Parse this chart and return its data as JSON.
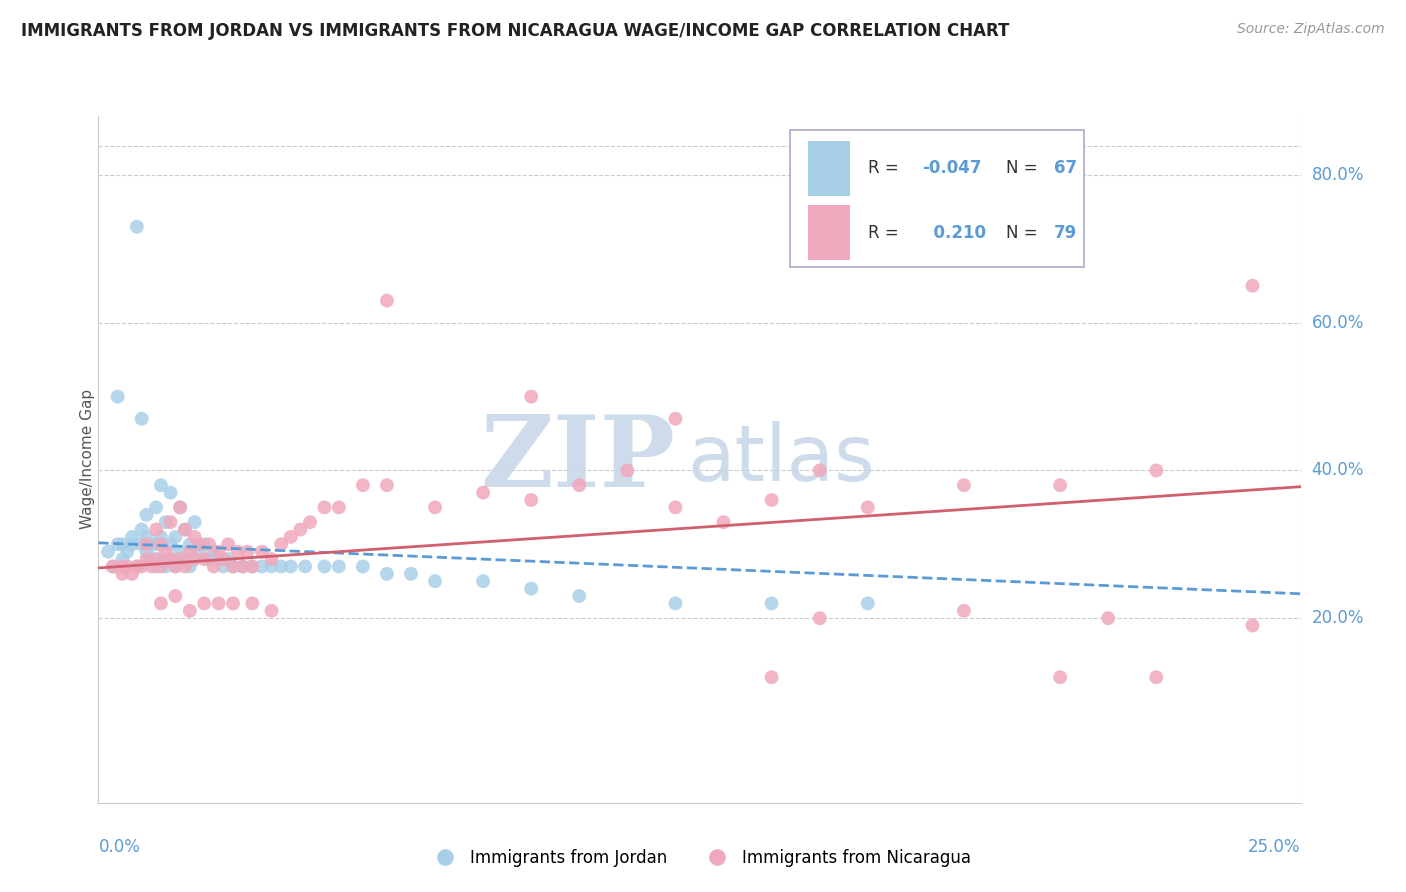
{
  "title": "IMMIGRANTS FROM JORDAN VS IMMIGRANTS FROM NICARAGUA WAGE/INCOME GAP CORRELATION CHART",
  "source": "Source: ZipAtlas.com",
  "ylabel": "Wage/Income Gap",
  "xlim": [
    0.0,
    0.25
  ],
  "ylim": [
    -0.05,
    0.88
  ],
  "right_yticks": [
    0.2,
    0.4,
    0.6,
    0.8
  ],
  "right_yticklabels": [
    "20.0%",
    "40.0%",
    "60.0%",
    "80.0%"
  ],
  "jordan_color": "#a8cfe8",
  "nicaragua_color": "#f0a8bc",
  "jordan_trend_color": "#5b9bd5",
  "nicaragua_trend_color": "#d06070",
  "watermark_zip_color": "#c8d8e8",
  "watermark_atlas_color": "#c8d8e8",
  "jordan_r": "-0.047",
  "jordan_n": "67",
  "nicaragua_r": "0.210",
  "nicaragua_n": "79",
  "legend_text_color": "#5b9bd5",
  "legend_label_color": "#333333",
  "jordan_scatter_x": [
    0.002,
    0.003,
    0.004,
    0.005,
    0.005,
    0.006,
    0.007,
    0.007,
    0.008,
    0.008,
    0.009,
    0.009,
    0.01,
    0.01,
    0.01,
    0.011,
    0.011,
    0.012,
    0.012,
    0.012,
    0.013,
    0.013,
    0.013,
    0.014,
    0.014,
    0.015,
    0.015,
    0.015,
    0.016,
    0.016,
    0.017,
    0.017,
    0.018,
    0.018,
    0.019,
    0.019,
    0.02,
    0.02,
    0.021,
    0.022,
    0.023,
    0.024,
    0.025,
    0.026,
    0.027,
    0.028,
    0.03,
    0.032,
    0.034,
    0.036,
    0.038,
    0.04,
    0.043,
    0.047,
    0.05,
    0.055,
    0.06,
    0.065,
    0.07,
    0.08,
    0.09,
    0.1,
    0.12,
    0.14,
    0.16,
    0.004,
    0.009
  ],
  "jordan_scatter_y": [
    0.29,
    0.27,
    0.3,
    0.28,
    0.3,
    0.29,
    0.3,
    0.31,
    0.73,
    0.27,
    0.3,
    0.32,
    0.29,
    0.31,
    0.34,
    0.28,
    0.3,
    0.27,
    0.3,
    0.35,
    0.28,
    0.31,
    0.38,
    0.27,
    0.33,
    0.28,
    0.3,
    0.37,
    0.27,
    0.31,
    0.29,
    0.35,
    0.28,
    0.32,
    0.27,
    0.3,
    0.28,
    0.33,
    0.29,
    0.3,
    0.28,
    0.29,
    0.28,
    0.27,
    0.28,
    0.27,
    0.27,
    0.27,
    0.27,
    0.27,
    0.27,
    0.27,
    0.27,
    0.27,
    0.27,
    0.27,
    0.26,
    0.26,
    0.25,
    0.25,
    0.24,
    0.23,
    0.22,
    0.22,
    0.22,
    0.5,
    0.47
  ],
  "nicaragua_scatter_x": [
    0.003,
    0.005,
    0.006,
    0.007,
    0.008,
    0.009,
    0.01,
    0.01,
    0.011,
    0.012,
    0.012,
    0.013,
    0.013,
    0.014,
    0.015,
    0.015,
    0.016,
    0.017,
    0.017,
    0.018,
    0.018,
    0.019,
    0.02,
    0.02,
    0.021,
    0.022,
    0.023,
    0.024,
    0.025,
    0.026,
    0.027,
    0.028,
    0.029,
    0.03,
    0.031,
    0.032,
    0.034,
    0.036,
    0.038,
    0.04,
    0.042,
    0.044,
    0.047,
    0.05,
    0.055,
    0.06,
    0.07,
    0.08,
    0.09,
    0.1,
    0.11,
    0.12,
    0.13,
    0.14,
    0.15,
    0.16,
    0.18,
    0.2,
    0.22,
    0.24,
    0.013,
    0.016,
    0.019,
    0.022,
    0.025,
    0.028,
    0.032,
    0.036,
    0.06,
    0.09,
    0.12,
    0.15,
    0.18,
    0.21,
    0.24,
    0.14,
    0.2,
    0.22,
    0.005
  ],
  "nicaragua_scatter_y": [
    0.27,
    0.26,
    0.27,
    0.26,
    0.27,
    0.27,
    0.28,
    0.3,
    0.27,
    0.28,
    0.32,
    0.27,
    0.3,
    0.29,
    0.28,
    0.33,
    0.27,
    0.28,
    0.35,
    0.27,
    0.32,
    0.29,
    0.28,
    0.31,
    0.3,
    0.28,
    0.3,
    0.27,
    0.29,
    0.28,
    0.3,
    0.27,
    0.29,
    0.27,
    0.29,
    0.27,
    0.29,
    0.28,
    0.3,
    0.31,
    0.32,
    0.33,
    0.35,
    0.35,
    0.38,
    0.38,
    0.35,
    0.37,
    0.36,
    0.38,
    0.4,
    0.35,
    0.33,
    0.36,
    0.4,
    0.35,
    0.38,
    0.38,
    0.4,
    0.65,
    0.22,
    0.23,
    0.21,
    0.22,
    0.22,
    0.22,
    0.22,
    0.21,
    0.63,
    0.5,
    0.47,
    0.2,
    0.21,
    0.2,
    0.19,
    0.12,
    0.12,
    0.12,
    0.27
  ],
  "jordan_trend_x": [
    0.0,
    0.25
  ],
  "jordan_trend_y": [
    0.302,
    0.233
  ],
  "nicaragua_trend_x": [
    0.0,
    0.25
  ],
  "nicaragua_trend_y": [
    0.268,
    0.378
  ]
}
